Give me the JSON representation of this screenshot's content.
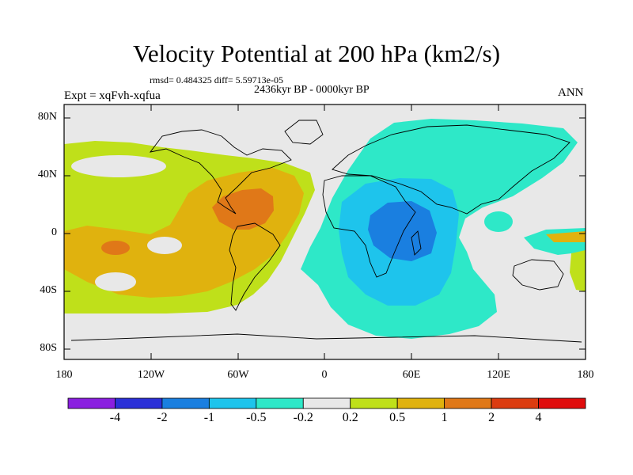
{
  "title": "Velocity Potential at 200 hPa (km2/s)",
  "stats_line": "rmsd= 0.484325 diff= 5.59713e-05",
  "period_line": "2436kyr BP - 0000kyr BP",
  "experiment_line": "Expt = xqFvh-xqfua",
  "season": "ANN",
  "y_axis_labels": [
    "80N",
    "40N",
    "0",
    "40S",
    "80S"
  ],
  "x_axis_labels": [
    "180",
    "120W",
    "60W",
    "0",
    "60E",
    "120E",
    "180"
  ],
  "colorbar": {
    "labels": [
      "-4",
      "-2",
      "-1",
      "-0.5",
      "-0.2",
      "0.2",
      "0.5",
      "1",
      "2",
      "4"
    ],
    "colors": [
      "#8a1fe0",
      "#2b30d8",
      "#1a7fe0",
      "#1ec4ec",
      "#2ee8c8",
      "#e8e8e8",
      "#bfe01a",
      "#e0b20e",
      "#e07818",
      "#dc3c10",
      "#e00c0c"
    ]
  },
  "map_colors": {
    "ocean_background": "#e8e8e8",
    "positive_02": "#bfe01a",
    "positive_05": "#e0b20e",
    "positive_1": "#e07818",
    "negative_02": "#2ee8c8",
    "negative_05": "#1ec4ec",
    "negative_1": "#1a7fe0"
  }
}
